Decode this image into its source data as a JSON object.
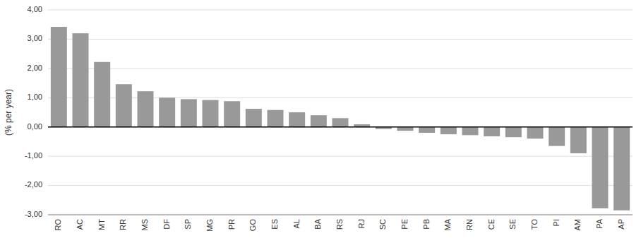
{
  "chart_data": {
    "type": "bar",
    "ylabel": "(% per year)",
    "categories": [
      "RO",
      "AC",
      "MT",
      "RR",
      "MS",
      "DF",
      "SP",
      "MG",
      "PR",
      "GO",
      "ES",
      "AL",
      "BA",
      "RS",
      "RJ",
      "SC",
      "PE",
      "PB",
      "MA",
      "RN",
      "CE",
      "SE",
      "TO",
      "PI",
      "AM",
      "PA",
      "AP"
    ],
    "values": [
      3.42,
      3.2,
      2.22,
      1.46,
      1.22,
      1.0,
      0.95,
      0.92,
      0.88,
      0.62,
      0.58,
      0.5,
      0.4,
      0.3,
      0.09,
      -0.07,
      -0.13,
      -0.2,
      -0.25,
      -0.28,
      -0.32,
      -0.35,
      -0.4,
      -0.65,
      -0.9,
      -2.78,
      -2.85
    ],
    "color": "#999999",
    "ylim": [
      -3.0,
      4.0
    ],
    "yticks": [
      {
        "value": -3.0,
        "label": "-3,00"
      },
      {
        "value": -2.0,
        "label": "-2,00"
      },
      {
        "value": -1.0,
        "label": "-1,00"
      },
      {
        "value": 0.0,
        "label": "0,00"
      },
      {
        "value": 1.0,
        "label": "1,00"
      },
      {
        "value": 2.0,
        "label": "2,00"
      },
      {
        "value": 3.0,
        "label": "3,00"
      },
      {
        "value": 4.0,
        "label": "4,00"
      }
    ],
    "grid": true
  }
}
